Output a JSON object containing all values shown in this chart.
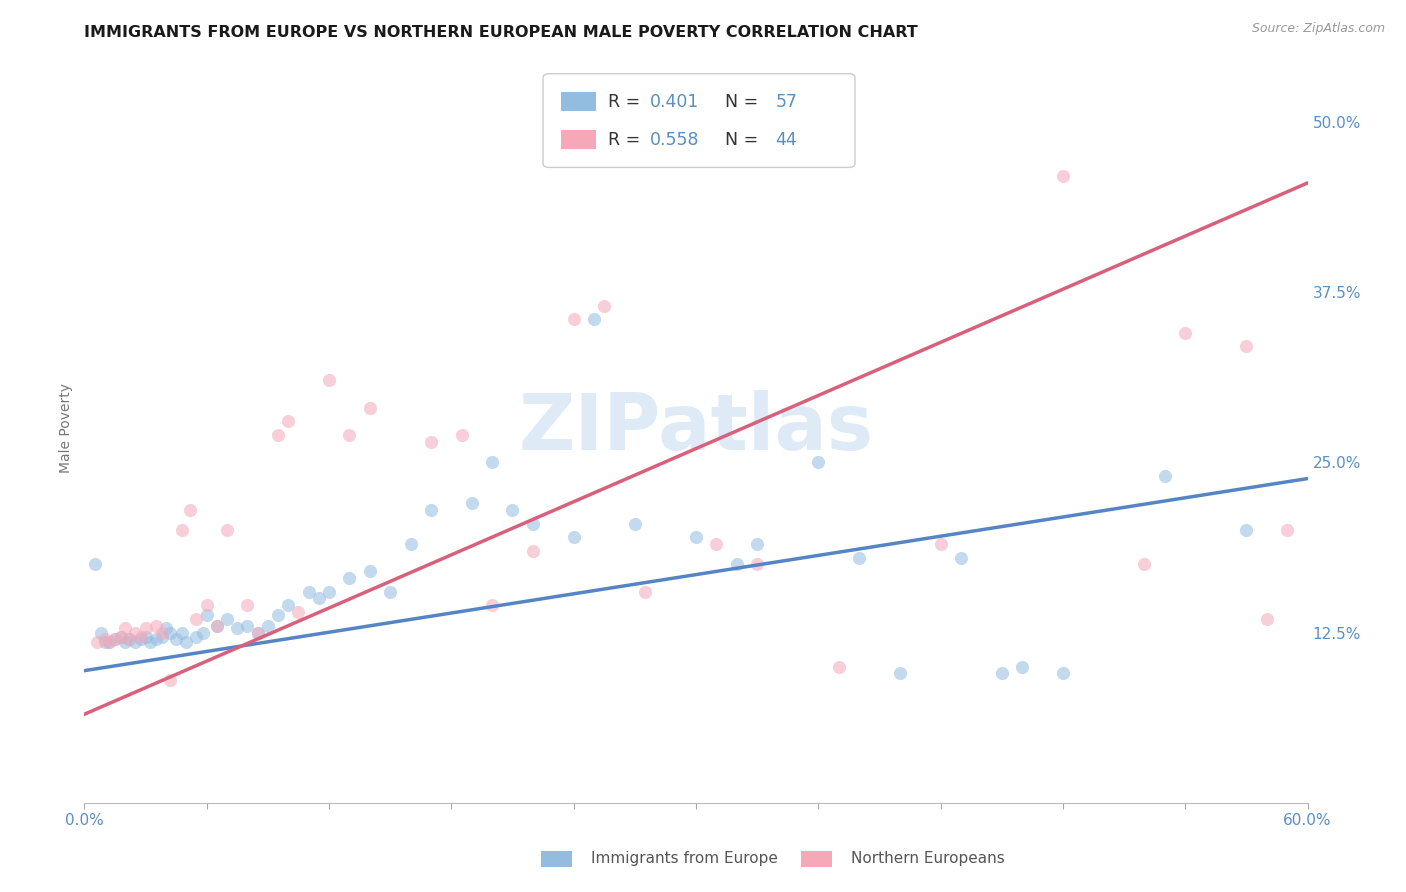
{
  "title": "IMMIGRANTS FROM EUROPE VS NORTHERN EUROPEAN MALE POVERTY CORRELATION CHART",
  "source": "Source: ZipAtlas.com",
  "ylabel": "Male Poverty",
  "xlim": [
    0.0,
    0.6
  ],
  "ylim": [
    0.0,
    0.55
  ],
  "ytick_labels": [
    "12.5%",
    "25.0%",
    "37.5%",
    "50.0%"
  ],
  "ytick_positions": [
    0.125,
    0.25,
    0.375,
    0.5
  ],
  "blue_color": "#92bce0",
  "pink_color": "#f4a8b8",
  "blue_line_color": "#5585c5",
  "pink_line_color": "#d9607a",
  "watermark": "ZIPatlas",
  "blue_scatter_x": [
    0.005,
    0.008,
    0.01,
    0.012,
    0.015,
    0.018,
    0.02,
    0.022,
    0.025,
    0.028,
    0.03,
    0.032,
    0.035,
    0.038,
    0.04,
    0.042,
    0.045,
    0.048,
    0.05,
    0.055,
    0.058,
    0.06,
    0.065,
    0.07,
    0.075,
    0.08,
    0.085,
    0.09,
    0.095,
    0.1,
    0.11,
    0.115,
    0.12,
    0.13,
    0.14,
    0.15,
    0.16,
    0.17,
    0.19,
    0.2,
    0.21,
    0.22,
    0.24,
    0.25,
    0.27,
    0.3,
    0.32,
    0.33,
    0.36,
    0.38,
    0.4,
    0.43,
    0.45,
    0.46,
    0.48,
    0.53,
    0.57
  ],
  "blue_scatter_y": [
    0.175,
    0.125,
    0.118,
    0.118,
    0.12,
    0.122,
    0.118,
    0.12,
    0.118,
    0.12,
    0.122,
    0.118,
    0.12,
    0.122,
    0.128,
    0.125,
    0.12,
    0.125,
    0.118,
    0.122,
    0.125,
    0.138,
    0.13,
    0.135,
    0.128,
    0.13,
    0.125,
    0.13,
    0.138,
    0.145,
    0.155,
    0.15,
    0.155,
    0.165,
    0.17,
    0.155,
    0.19,
    0.215,
    0.22,
    0.25,
    0.215,
    0.205,
    0.195,
    0.355,
    0.205,
    0.195,
    0.175,
    0.19,
    0.25,
    0.18,
    0.095,
    0.18,
    0.095,
    0.1,
    0.095,
    0.24,
    0.2
  ],
  "pink_scatter_x": [
    0.006,
    0.01,
    0.012,
    0.015,
    0.018,
    0.02,
    0.022,
    0.025,
    0.028,
    0.03,
    0.035,
    0.038,
    0.042,
    0.048,
    0.052,
    0.055,
    0.06,
    0.065,
    0.07,
    0.08,
    0.085,
    0.095,
    0.1,
    0.105,
    0.12,
    0.13,
    0.14,
    0.17,
    0.185,
    0.2,
    0.22,
    0.24,
    0.255,
    0.275,
    0.31,
    0.33,
    0.37,
    0.42,
    0.48,
    0.52,
    0.54,
    0.57,
    0.58,
    0.59
  ],
  "pink_scatter_y": [
    0.118,
    0.12,
    0.118,
    0.12,
    0.122,
    0.128,
    0.12,
    0.125,
    0.122,
    0.128,
    0.13,
    0.125,
    0.09,
    0.2,
    0.215,
    0.135,
    0.145,
    0.13,
    0.2,
    0.145,
    0.125,
    0.27,
    0.28,
    0.14,
    0.31,
    0.27,
    0.29,
    0.265,
    0.27,
    0.145,
    0.185,
    0.355,
    0.365,
    0.155,
    0.19,
    0.175,
    0.1,
    0.19,
    0.46,
    0.175,
    0.345,
    0.335,
    0.135,
    0.2
  ],
  "blue_line_x": [
    0.0,
    0.6
  ],
  "blue_line_y": [
    0.097,
    0.238
  ],
  "pink_line_x": [
    0.0,
    0.6
  ],
  "pink_line_y": [
    0.065,
    0.455
  ],
  "grid_color": "#dddddd",
  "background_color": "#ffffff",
  "text_color": "#5a8fc5",
  "marker_size": 90,
  "marker_alpha": 0.55,
  "title_fontsize": 11.5,
  "axis_label_fontsize": 10,
  "tick_fontsize": 11
}
